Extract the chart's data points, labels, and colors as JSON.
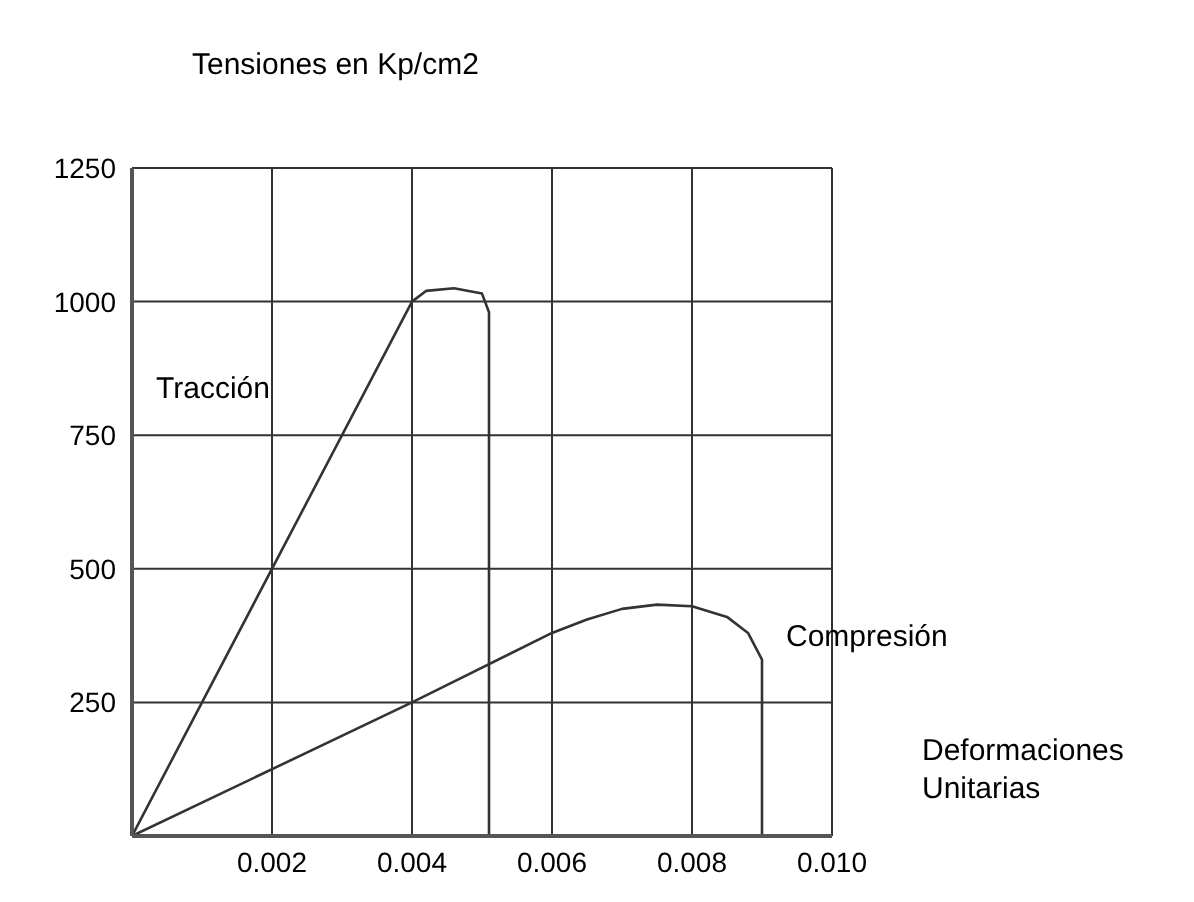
{
  "chart_data": {
    "type": "line",
    "ylabel": "Tensiones en Kp/cm2",
    "xlabel": "Deformaciones\nUnitarias",
    "xlim": [
      0,
      0.01
    ],
    "xticks": [
      0.002,
      0.004,
      0.006,
      0.008,
      {
        "value": 0.01,
        "label": "0.010"
      }
    ],
    "ylim": [
      0,
      1250
    ],
    "yticks": [
      250,
      500,
      750,
      1000,
      1250
    ],
    "grid": true,
    "marker": "none",
    "line_style": "solid",
    "series": [
      {
        "name": "Tracción",
        "color": "#333333",
        "x": [
          0,
          0.004,
          0.0042,
          0.0046,
          0.005,
          0.0051,
          0.0051
        ],
        "values": [
          0,
          1000,
          1020,
          1025,
          1015,
          980,
          0
        ]
      },
      {
        "name": "Compresión",
        "color": "#333333",
        "x": [
          0,
          0.004,
          0.006,
          0.0065,
          0.007,
          0.0075,
          0.008,
          0.0085,
          0.0088,
          0.009,
          0.009
        ],
        "values": [
          0,
          250,
          380,
          405,
          425,
          433,
          430,
          410,
          380,
          330,
          0
        ]
      }
    ]
  }
}
